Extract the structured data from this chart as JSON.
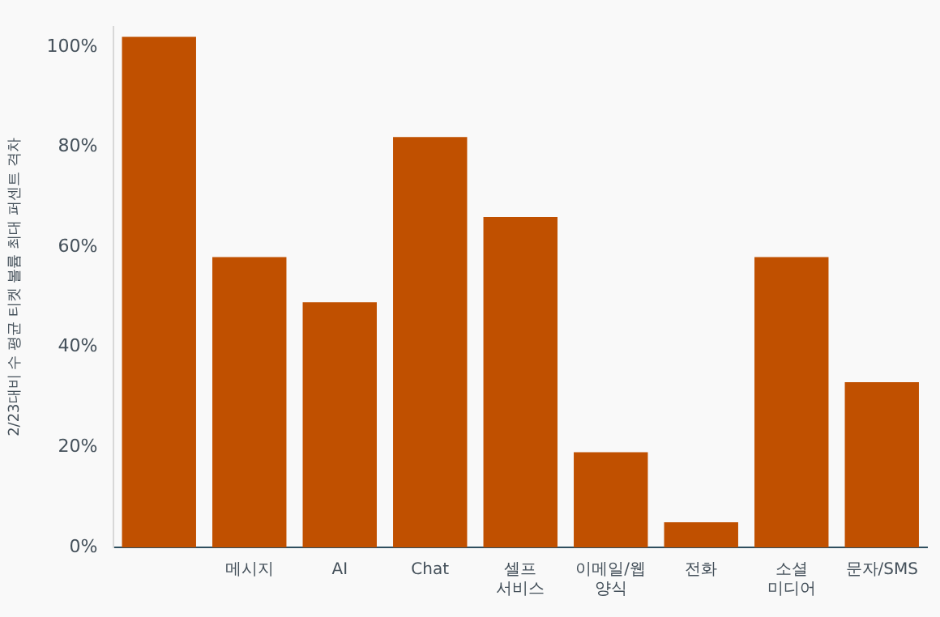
{
  "chart_data": {
    "type": "bar",
    "ylabel": "2/23대비 수 평균 티켓 볼륨 최대 퍼센트 격차",
    "categories": [
      null,
      "메시지",
      "AI",
      "Chat",
      "셀프 서비스",
      "이메일/웹 양식",
      "전화",
      "소셜 미디어",
      "문자/SMS"
    ],
    "values": [
      102,
      58,
      49,
      82,
      66,
      19,
      5,
      58,
      33
    ],
    "color": "#c05000",
    "ylim": [
      0,
      104
    ],
    "yticks": [
      {
        "value": 0,
        "label": "0%"
      },
      {
        "value": 20,
        "label": "20%"
      },
      {
        "value": 40,
        "label": "40%"
      },
      {
        "value": 60,
        "label": "60%"
      },
      {
        "value": 80,
        "label": "80%"
      },
      {
        "value": 100,
        "label": "100%"
      }
    ],
    "grid": false,
    "legend": false
  }
}
